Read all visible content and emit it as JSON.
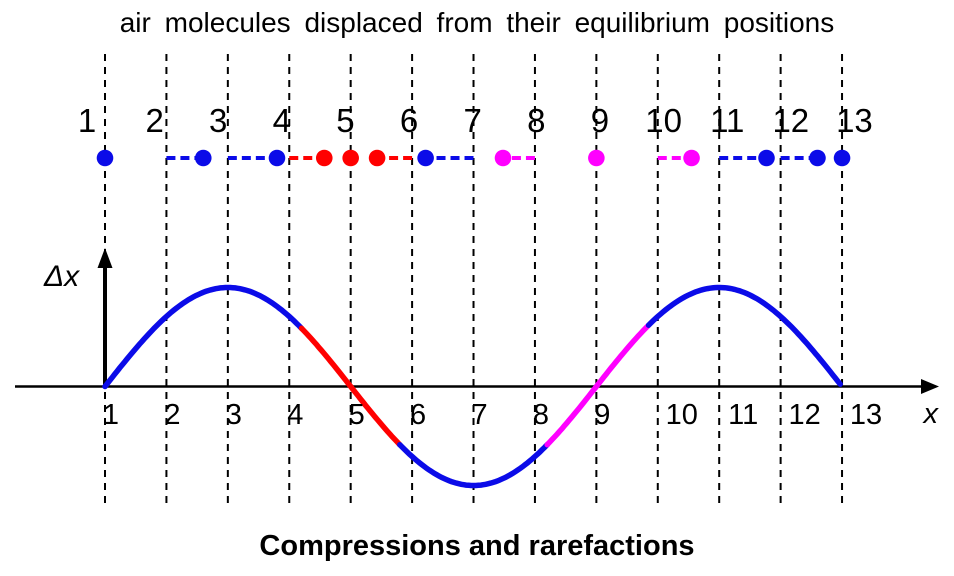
{
  "title": "air molecules displaced from their equilibrium positions",
  "caption": "Compressions and rarefactions",
  "colors": {
    "blue": "#0b0be8",
    "red": "#ff0000",
    "magenta": "#ff00ff",
    "axis": "#000000"
  },
  "chart_data": {
    "type": "line",
    "title": "air molecules displaced from their equilibrium positions",
    "xlabel": "x",
    "ylabel": "Δx",
    "x_ticks": [
      "1",
      "2",
      "3",
      "4",
      "5",
      "6",
      "7",
      "8",
      "9",
      "10",
      "11",
      "12",
      "13"
    ],
    "top_row_ticks": [
      "1",
      "2",
      "3",
      "4",
      "5",
      "6",
      "7",
      "8",
      "9",
      "10",
      "11",
      "12",
      "13"
    ],
    "axis_range_x": [
      1,
      13
    ],
    "grid": "dashed vertical gridlines at every integer x from 1 to 13",
    "wave": {
      "description": "displacement of air molecules, Δx = A·sin(2π(x−1)/8)",
      "period": 8,
      "amplitude": 1,
      "zero_crossings": [
        1,
        5,
        9,
        13
      ],
      "maxima": [
        3,
        11
      ],
      "minima": [
        7
      ],
      "color_segments": [
        {
          "from": 1.0,
          "to": 4.2,
          "color": "blue"
        },
        {
          "from": 4.2,
          "to": 5.8,
          "color": "red"
        },
        {
          "from": 5.8,
          "to": 8.2,
          "color": "blue"
        },
        {
          "from": 8.2,
          "to": 9.85,
          "color": "magenta"
        },
        {
          "from": 9.85,
          "to": 13.0,
          "color": "blue"
        }
      ]
    },
    "molecules": [
      {
        "equilibrium": 1,
        "displacement": 0.0,
        "color": "blue"
      },
      {
        "equilibrium": 2,
        "displacement": 0.6,
        "color": "blue"
      },
      {
        "equilibrium": 3,
        "displacement": 0.8,
        "color": "blue"
      },
      {
        "equilibrium": 4,
        "displacement": 0.57,
        "color": "red"
      },
      {
        "equilibrium": 5,
        "displacement": 0.0,
        "color": "red"
      },
      {
        "equilibrium": 6,
        "displacement": -0.57,
        "color": "red"
      },
      {
        "equilibrium": 7,
        "displacement": -0.78,
        "color": "blue"
      },
      {
        "equilibrium": 8,
        "displacement": -0.52,
        "color": "magenta"
      },
      {
        "equilibrium": 9,
        "displacement": 0.0,
        "color": "magenta"
      },
      {
        "equilibrium": 10,
        "displacement": 0.55,
        "color": "magenta"
      },
      {
        "equilibrium": 11,
        "displacement": 0.77,
        "color": "blue"
      },
      {
        "equilibrium": 12,
        "displacement": 0.6,
        "color": "blue"
      },
      {
        "equilibrium": 13,
        "displacement": 0.0,
        "color": "blue"
      }
    ]
  }
}
